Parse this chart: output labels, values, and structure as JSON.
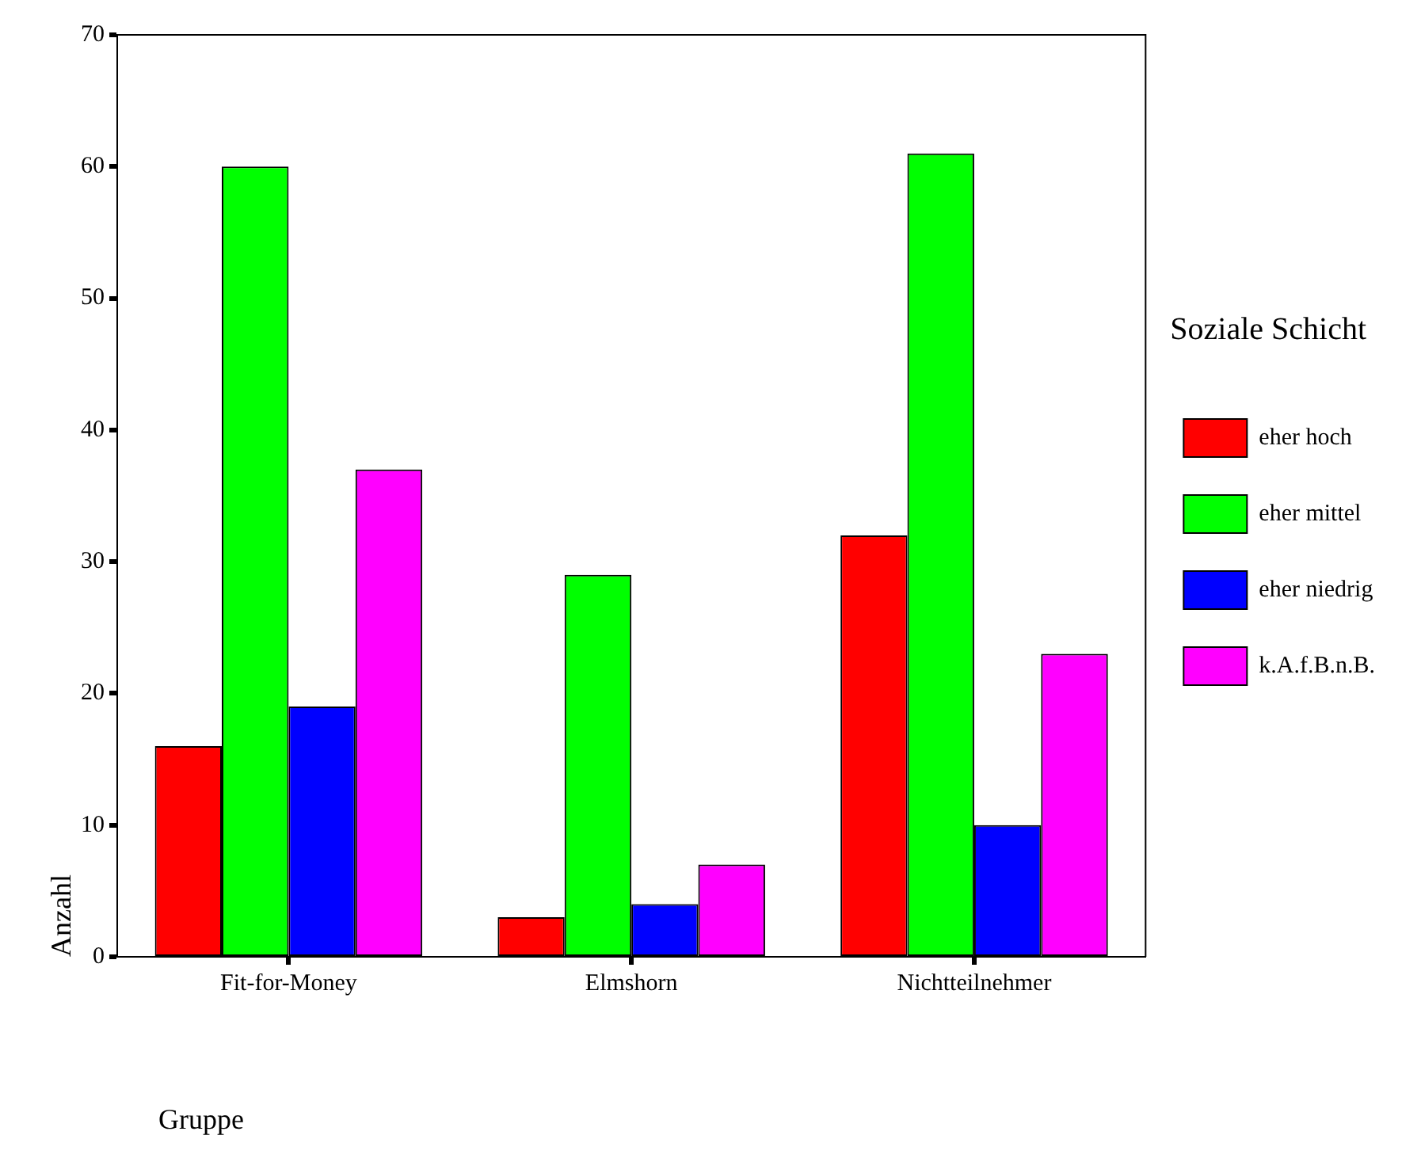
{
  "chart_data": {
    "type": "bar",
    "xlabel": "Gruppe",
    "ylabel": "Anzahl",
    "legend_title": "Soziale Schicht",
    "legend": "right",
    "categories": [
      "Fit-for-Money",
      "Elmshorn",
      "Nichtteilnehmer"
    ],
    "series": [
      {
        "name": "eher hoch",
        "color": "#ff0000",
        "values": [
          16,
          3,
          32
        ]
      },
      {
        "name": "eher mittel",
        "color": "#00ff00",
        "values": [
          60,
          29,
          61
        ]
      },
      {
        "name": "eher niedrig",
        "color": "#0000ff",
        "values": [
          19,
          4,
          10
        ]
      },
      {
        "name": "k.A.f.B.n.B.",
        "color": "#ff00ff",
        "values": [
          37,
          7,
          23
        ]
      }
    ],
    "ylim": [
      0,
      70
    ],
    "yticks": [
      0,
      10,
      20,
      30,
      40,
      50,
      60,
      70
    ]
  }
}
